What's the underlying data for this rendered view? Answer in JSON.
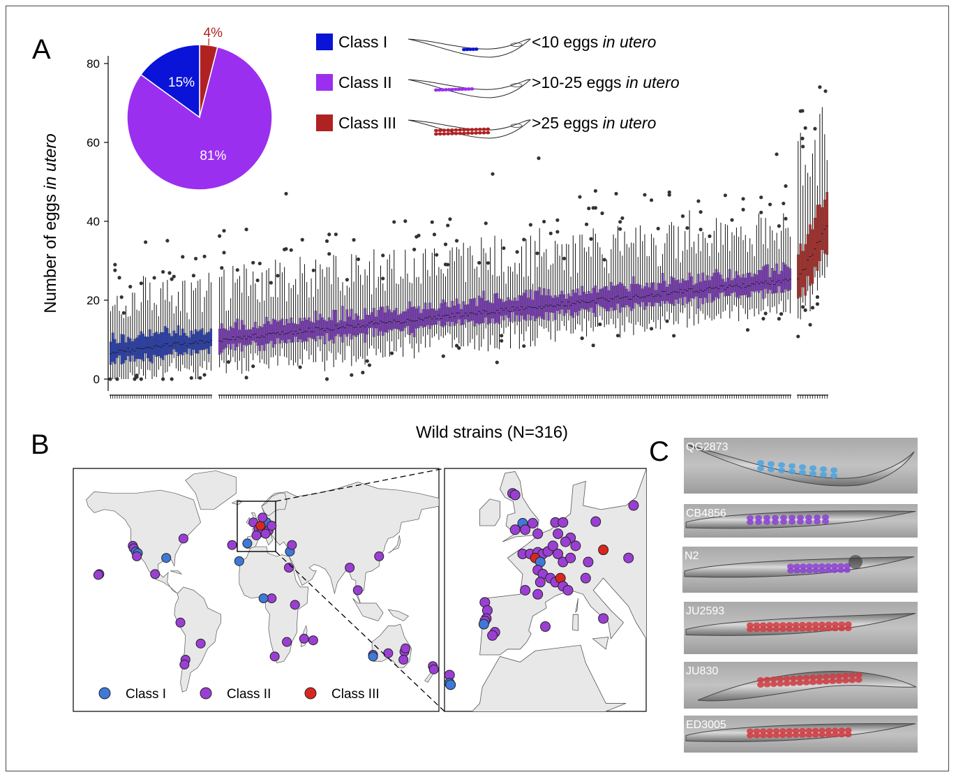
{
  "colors": {
    "class1": "#0a14d8",
    "class2": "#9b2ff0",
    "class3": "#b02222",
    "box_class1": "#2a3fb0",
    "box_class2": "#7c3db8",
    "box_class3": "#a8302c",
    "map_class1": "#3f78d8",
    "map_class2": "#9b3fd4",
    "map_class3": "#d8281e",
    "pie_class1": "#0a14d8",
    "pie_class2": "#9b2ff0",
    "pie_class3": "#b02222",
    "land": "#e8e8e8"
  },
  "panels": {
    "a": "A",
    "b": "B",
    "c": "C"
  },
  "legend_a": [
    {
      "class": "Class I",
      "desc_prefix": "<10 eggs ",
      "desc_italic": "in utero",
      "egg_count": 5
    },
    {
      "class": "Class II",
      "desc_prefix": ">10-25 eggs ",
      "desc_italic": "in utero",
      "egg_count": 12
    },
    {
      "class": "Class III",
      "desc_prefix": ">25 eggs ",
      "desc_italic": "in utero",
      "egg_count": 28
    }
  ],
  "map_legend": [
    "Class I",
    "Class II",
    "Class III"
  ],
  "strain_images": [
    {
      "name": "QG2873",
      "egg_class": "class1"
    },
    {
      "name": "CB4856",
      "egg_class": "class2"
    },
    {
      "name": "N2",
      "egg_class": "class2"
    },
    {
      "name": "JU2593",
      "egg_class": "class3"
    },
    {
      "name": "JU830",
      "egg_class": "class3"
    },
    {
      "name": "ED3005",
      "egg_class": "class3"
    }
  ],
  "chart_data": [
    {
      "type": "pie",
      "slices": [
        {
          "label": "4%",
          "value": 4,
          "class": "Class III"
        },
        {
          "label": "81%",
          "value": 81,
          "class": "Class II"
        },
        {
          "label": "15%",
          "value": 15,
          "class": "Class I"
        }
      ]
    },
    {
      "type": "box",
      "xlabel": "Wild strains (N=316)",
      "ylabel_prefix": "Number of eggs ",
      "ylabel_italic": "in utero",
      "ylim": [
        0,
        80
      ],
      "yticks": [
        0,
        20,
        40,
        60,
        80
      ],
      "groups": [
        {
          "class": "Class I",
          "n": 47,
          "median_start": 7,
          "median_end": 9.5
        },
        {
          "class": "Class II",
          "n": 256,
          "median_start": 10,
          "median_end": 25
        },
        {
          "class": "Class III",
          "n": 13,
          "median_start": 25,
          "median_end": 39
        }
      ],
      "outliers_note": "per-strain outliers up to 73 eggs"
    }
  ],
  "map_points": {
    "world": [
      {
        "lon": -122,
        "lat": 37.5,
        "c": 2
      },
      {
        "lon": -121,
        "lat": 36,
        "c": 2
      },
      {
        "lon": -119,
        "lat": 34,
        "c": 1
      },
      {
        "lon": -117,
        "lat": 33,
        "c": 1
      },
      {
        "lon": -118,
        "lat": 31,
        "c": 2
      },
      {
        "lon": -155,
        "lat": 20,
        "c": 2
      },
      {
        "lon": -156,
        "lat": 19.5,
        "c": 2
      },
      {
        "lon": -89,
        "lat": 30,
        "c": 1
      },
      {
        "lon": -100,
        "lat": 20,
        "c": 2
      },
      {
        "lon": -72,
        "lat": 42,
        "c": 2
      },
      {
        "lon": -75,
        "lat": -10,
        "c": 2
      },
      {
        "lon": -55,
        "lat": -23,
        "c": 2
      },
      {
        "lon": -70,
        "lat": -33,
        "c": 2
      },
      {
        "lon": -71,
        "lat": -36,
        "c": 2
      },
      {
        "lon": -17,
        "lat": 28,
        "c": 1
      },
      {
        "lon": -24,
        "lat": 38,
        "c": 2
      },
      {
        "lon": 33,
        "lat": 34,
        "c": 1
      },
      {
        "lon": 35,
        "lat": 38,
        "c": 2
      },
      {
        "lon": 32,
        "lat": 24,
        "c": 2
      },
      {
        "lon": 38,
        "lat": 1,
        "c": 2
      },
      {
        "lon": 15,
        "lat": 5,
        "c": 2
      },
      {
        "lon": 7,
        "lat": 5,
        "c": 1
      },
      {
        "lon": 30,
        "lat": -22,
        "c": 2
      },
      {
        "lon": 18,
        "lat": -31,
        "c": 2
      },
      {
        "lon": 47,
        "lat": -20,
        "c": 2
      },
      {
        "lon": 56,
        "lat": -21,
        "c": 2
      },
      {
        "lon": 92,
        "lat": 24,
        "c": 2
      },
      {
        "lon": 121,
        "lat": 31,
        "c": 2
      },
      {
        "lon": 100,
        "lat": 10,
        "c": 2
      },
      {
        "lon": 115,
        "lat": -30,
        "c": 2
      },
      {
        "lon": 115,
        "lat": -31,
        "c": 1
      },
      {
        "lon": 130,
        "lat": -29,
        "c": 2
      },
      {
        "lon": 146,
        "lat": -28,
        "c": 2
      },
      {
        "lon": 147,
        "lat": -26,
        "c": 2
      },
      {
        "lon": 145,
        "lat": -33,
        "c": 2
      },
      {
        "lon": 174,
        "lat": -37,
        "c": 2
      },
      {
        "lon": 175,
        "lat": -39,
        "c": 2
      },
      {
        "lon": -9,
        "lat": 39,
        "c": 1
      },
      {
        "lon": -3,
        "lat": 52,
        "c": 2
      },
      {
        "lon": 2,
        "lat": 48,
        "c": 2
      },
      {
        "lon": 5,
        "lat": 46,
        "c": 2
      },
      {
        "lon": 8,
        "lat": 50,
        "c": 2
      },
      {
        "lon": 10,
        "lat": 52,
        "c": 1
      },
      {
        "lon": 4,
        "lat": 50,
        "c": 3
      },
      {
        "lon": 12,
        "lat": 47,
        "c": 2
      },
      {
        "lon": 15,
        "lat": 50,
        "c": 2
      },
      {
        "lon": 0,
        "lat": 44,
        "c": 2
      },
      {
        "lon": 6,
        "lat": 55,
        "c": 2
      },
      {
        "lon": 9,
        "lat": 45,
        "c": 2
      }
    ],
    "inset": [
      {
        "lon": -3.5,
        "lat": 56,
        "c": 2
      },
      {
        "lon": -3,
        "lat": 55.8,
        "c": 2
      },
      {
        "lon": 20.5,
        "lat": 54.5,
        "c": 2
      },
      {
        "lon": -1.5,
        "lat": 52.3,
        "c": 1
      },
      {
        "lon": 0.5,
        "lat": 52.3,
        "c": 2
      },
      {
        "lon": -1,
        "lat": 51.5,
        "c": 2
      },
      {
        "lon": -3,
        "lat": 51.5,
        "c": 2
      },
      {
        "lon": 5,
        "lat": 52.4,
        "c": 2
      },
      {
        "lon": 6.5,
        "lat": 52.4,
        "c": 2
      },
      {
        "lon": 13,
        "lat": 52.5,
        "c": 2
      },
      {
        "lon": 1.5,
        "lat": 51,
        "c": 2
      },
      {
        "lon": 5.5,
        "lat": 51,
        "c": 2
      },
      {
        "lon": 8,
        "lat": 50.5,
        "c": 2
      },
      {
        "lon": 9,
        "lat": 49.5,
        "c": 2
      },
      {
        "lon": 7,
        "lat": 50,
        "c": 2
      },
      {
        "lon": -1.5,
        "lat": 48.5,
        "c": 2
      },
      {
        "lon": 0,
        "lat": 48.5,
        "c": 2
      },
      {
        "lon": 1.5,
        "lat": 48.7,
        "c": 2
      },
      {
        "lon": 2.5,
        "lat": 48.5,
        "c": 2
      },
      {
        "lon": 3.5,
        "lat": 48.8,
        "c": 2
      },
      {
        "lon": 1,
        "lat": 48,
        "c": 3
      },
      {
        "lon": 2,
        "lat": 47.5,
        "c": 1
      },
      {
        "lon": 4.5,
        "lat": 49.5,
        "c": 2
      },
      {
        "lon": 5.5,
        "lat": 48.5,
        "c": 2
      },
      {
        "lon": 6.5,
        "lat": 47.5,
        "c": 2
      },
      {
        "lon": 8,
        "lat": 48,
        "c": 2
      },
      {
        "lon": 14.5,
        "lat": 49,
        "c": 3
      },
      {
        "lon": 19.5,
        "lat": 48,
        "c": 2
      },
      {
        "lon": 11.5,
        "lat": 47.5,
        "c": 2
      },
      {
        "lon": 1.5,
        "lat": 46.5,
        "c": 2
      },
      {
        "lon": 2.5,
        "lat": 46,
        "c": 2
      },
      {
        "lon": 2,
        "lat": 45,
        "c": 2
      },
      {
        "lon": 4,
        "lat": 45.5,
        "c": 2
      },
      {
        "lon": 5,
        "lat": 45,
        "c": 2
      },
      {
        "lon": 6,
        "lat": 45.5,
        "c": 3
      },
      {
        "lon": 6.5,
        "lat": 44.5,
        "c": 2
      },
      {
        "lon": 7.5,
        "lat": 44,
        "c": 2
      },
      {
        "lon": 11,
        "lat": 45.5,
        "c": 2
      },
      {
        "lon": -1,
        "lat": 44,
        "c": 2
      },
      {
        "lon": 1.5,
        "lat": 43.5,
        "c": 2
      },
      {
        "lon": -9,
        "lat": 42.5,
        "c": 2
      },
      {
        "lon": -8.5,
        "lat": 41.5,
        "c": 2
      },
      {
        "lon": -8.7,
        "lat": 40.5,
        "c": 2
      },
      {
        "lon": -9,
        "lat": 40.2,
        "c": 2
      },
      {
        "lon": -9.2,
        "lat": 39.8,
        "c": 1
      },
      {
        "lon": -7,
        "lat": 38.8,
        "c": 2
      },
      {
        "lon": -7.5,
        "lat": 38.4,
        "c": 2
      },
      {
        "lon": 3,
        "lat": 39.5,
        "c": 2
      },
      {
        "lon": 14.5,
        "lat": 40.5,
        "c": 2
      },
      {
        "lon": -16,
        "lat": 33.5,
        "c": 2
      },
      {
        "lon": -16,
        "lat": 32.5,
        "c": 1
      },
      {
        "lon": -15.8,
        "lat": 32.3,
        "c": 1
      }
    ]
  }
}
